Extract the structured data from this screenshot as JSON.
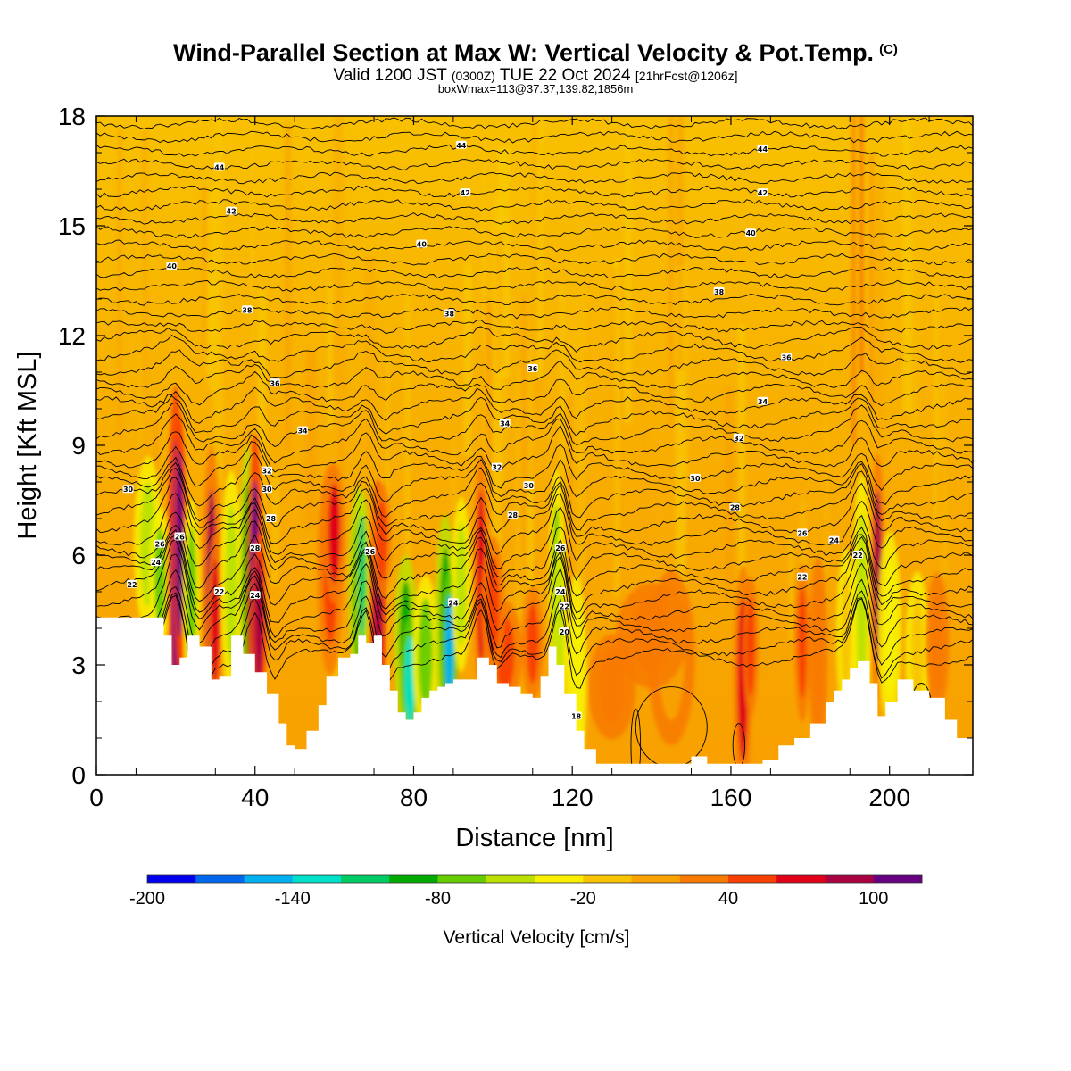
{
  "title": {
    "main": "Wind-Parallel Section at Max W: Vertical Velocity & Pot.Temp.",
    "copyright": "(C)",
    "valid_prefix": "Valid 1200 JST",
    "valid_utc": "(0300Z)",
    "valid_date": "TUE 22 Oct 2024",
    "forecast": "[21hrFcst@1206z]",
    "box_info": "boxWmax=113@37.37,139.82,1856m"
  },
  "chart_data": {
    "type": "heatmap",
    "xlabel": "Distance [nm]",
    "ylabel": "Height [Kft MSL]",
    "xlim": [
      0,
      221
    ],
    "ylim": [
      0,
      18
    ],
    "x_ticks": [
      0,
      40,
      80,
      120,
      160,
      200
    ],
    "y_ticks": [
      0,
      3,
      6,
      9,
      12,
      15,
      18
    ],
    "colorbar": {
      "title": "Vertical Velocity [cm/s]",
      "tick_values": [
        -200,
        -140,
        -80,
        -20,
        40,
        100
      ],
      "min": -200,
      "max": 120,
      "colors": [
        "#0000ee",
        "#0066ee",
        "#00b0f0",
        "#00e0c8",
        "#00cc66",
        "#00aa00",
        "#66cc00",
        "#bbe000",
        "#f8f000",
        "#f8c400",
        "#f8a200",
        "#f87a00",
        "#f84000",
        "#e00018",
        "#a80040",
        "#660080"
      ]
    },
    "theta_contour_labels": [
      {
        "x": 9,
        "y": 5.2,
        "v": "22"
      },
      {
        "x": 15,
        "y": 5.8,
        "v": "24"
      },
      {
        "x": 16,
        "y": 6.3,
        "v": "26"
      },
      {
        "x": 21,
        "y": 6.5,
        "v": "26"
      },
      {
        "x": 31,
        "y": 5,
        "v": "22"
      },
      {
        "x": 40,
        "y": 6.2,
        "v": "28"
      },
      {
        "x": 40,
        "y": 4.9,
        "v": "24"
      },
      {
        "x": 44,
        "y": 7,
        "v": "28"
      },
      {
        "x": 43,
        "y": 7.8,
        "v": "30"
      },
      {
        "x": 43,
        "y": 8.3,
        "v": "32"
      },
      {
        "x": 8,
        "y": 7.8,
        "v": "30"
      },
      {
        "x": 52,
        "y": 9.4,
        "v": "34"
      },
      {
        "x": 45,
        "y": 10.7,
        "v": "36"
      },
      {
        "x": 38,
        "y": 12.7,
        "v": "38"
      },
      {
        "x": 19,
        "y": 13.9,
        "v": "40"
      },
      {
        "x": 34,
        "y": 15.4,
        "v": "42"
      },
      {
        "x": 31,
        "y": 16.6,
        "v": "44"
      },
      {
        "x": 69,
        "y": 6.1,
        "v": "26"
      },
      {
        "x": 90,
        "y": 4.7,
        "v": "24"
      },
      {
        "x": 105,
        "y": 7.1,
        "v": "28"
      },
      {
        "x": 109,
        "y": 7.9,
        "v": "30"
      },
      {
        "x": 101,
        "y": 8.4,
        "v": "32"
      },
      {
        "x": 103,
        "y": 9.6,
        "v": "34"
      },
      {
        "x": 110,
        "y": 11.1,
        "v": "36"
      },
      {
        "x": 89,
        "y": 12.6,
        "v": "38"
      },
      {
        "x": 82,
        "y": 14.5,
        "v": "40"
      },
      {
        "x": 93,
        "y": 15.9,
        "v": "42"
      },
      {
        "x": 92,
        "y": 17.2,
        "v": "44"
      },
      {
        "x": 117,
        "y": 6.2,
        "v": "26"
      },
      {
        "x": 117,
        "y": 5,
        "v": "24"
      },
      {
        "x": 118,
        "y": 4.6,
        "v": "22"
      },
      {
        "x": 118,
        "y": 3.9,
        "v": "20"
      },
      {
        "x": 121,
        "y": 1.6,
        "v": "18"
      },
      {
        "x": 151,
        "y": 8.1,
        "v": "30"
      },
      {
        "x": 161,
        "y": 7.3,
        "v": "28"
      },
      {
        "x": 162,
        "y": 9.2,
        "v": "32"
      },
      {
        "x": 168,
        "y": 10.2,
        "v": "34"
      },
      {
        "x": 174,
        "y": 11.4,
        "v": "36"
      },
      {
        "x": 157,
        "y": 13.2,
        "v": "38"
      },
      {
        "x": 165,
        "y": 14.8,
        "v": "40"
      },
      {
        "x": 168,
        "y": 15.9,
        "v": "42"
      },
      {
        "x": 168,
        "y": 17.1,
        "v": "44"
      },
      {
        "x": 178,
        "y": 6.6,
        "v": "26"
      },
      {
        "x": 186,
        "y": 6.4,
        "v": "24"
      },
      {
        "x": 178,
        "y": 5.4,
        "v": "22"
      },
      {
        "x": 192,
        "y": 6,
        "v": "22"
      }
    ]
  }
}
